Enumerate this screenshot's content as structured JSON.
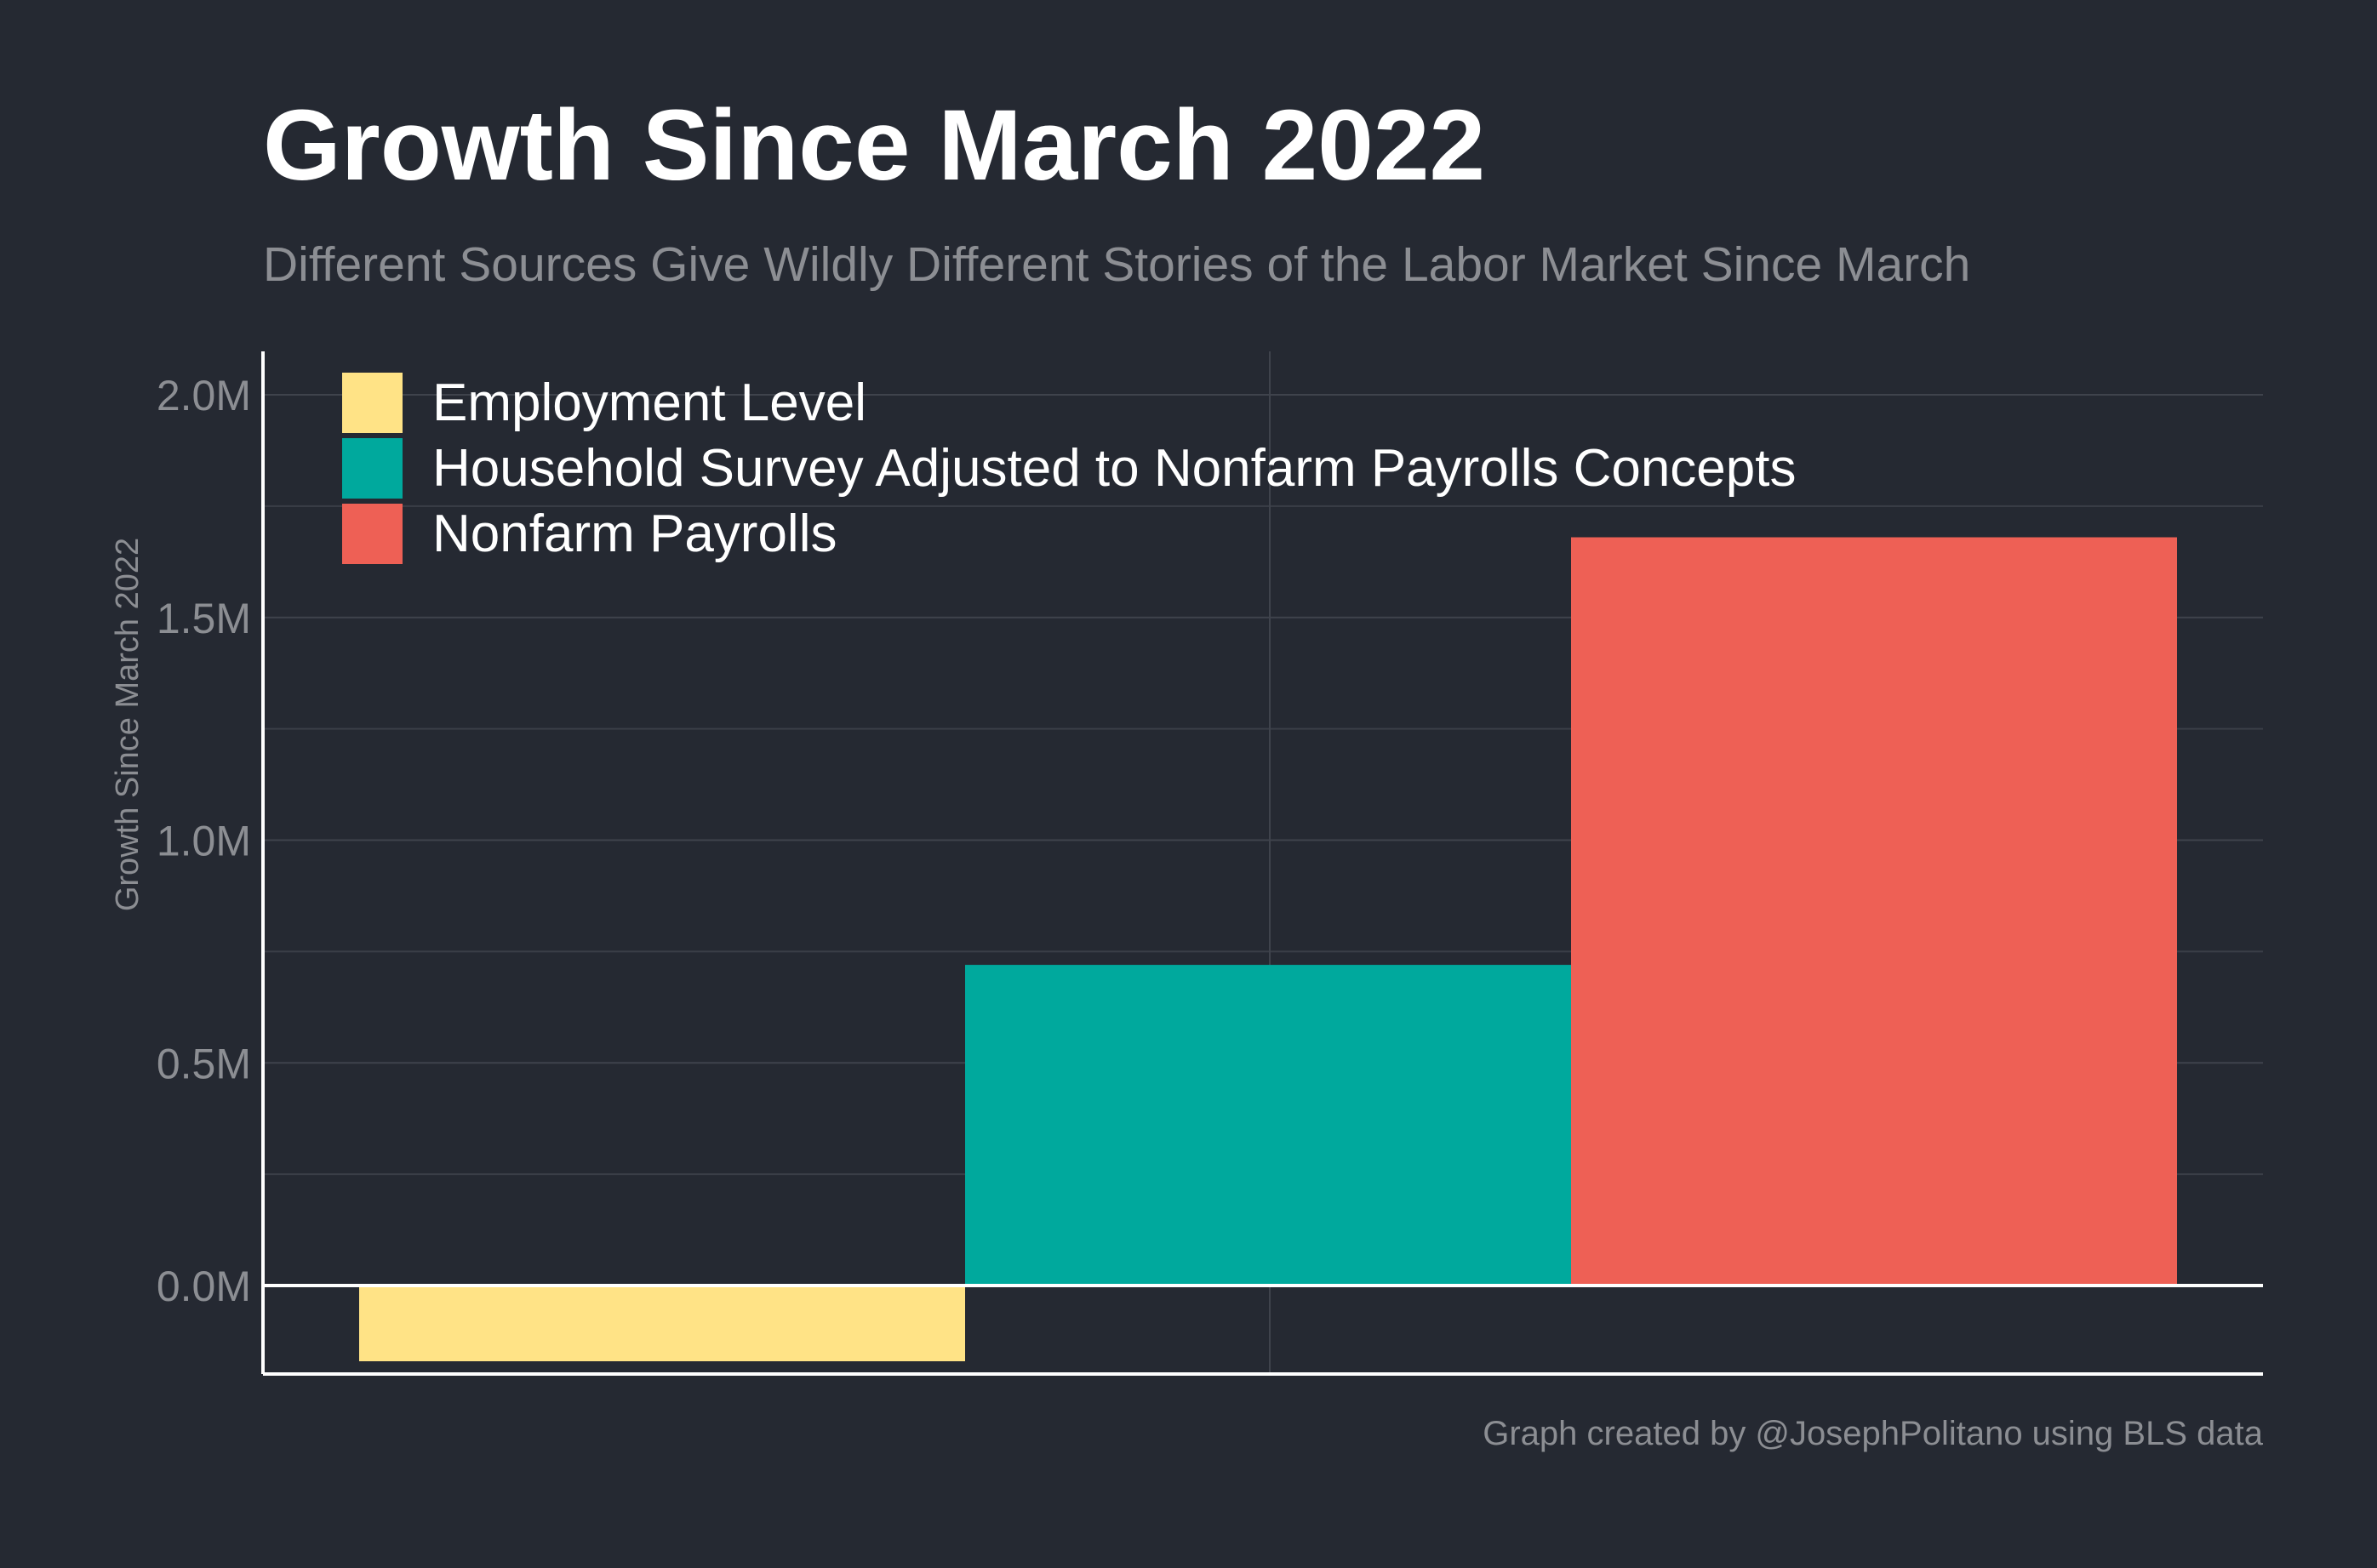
{
  "chart_data": {
    "type": "bar",
    "title": "Growth Since March 2022",
    "subtitle": "Different Sources Give Wildly Different Stories of the Labor Market Since March",
    "ylabel": "Growth Since March 2022",
    "xlabel": "",
    "caption": "Graph created by @JosephPolitano using BLS data",
    "categories": [
      "Employment Level",
      "Household Survey Adjusted to Nonfarm Payrolls Concepts",
      "Nonfarm Payrolls"
    ],
    "values": [
      -170000,
      720000,
      1680000
    ],
    "colors": [
      "#FFE386",
      "#00A99D",
      "#EE6055"
    ],
    "ylim": [
      -200000,
      2100000
    ],
    "yticks": [
      0,
      500000,
      1000000,
      1500000,
      2000000
    ],
    "ytick_labels": [
      "0.0M",
      "0.5M",
      "1.0M",
      "1.5M",
      "2.0M"
    ],
    "grid": true,
    "legend_position": "top-left"
  }
}
